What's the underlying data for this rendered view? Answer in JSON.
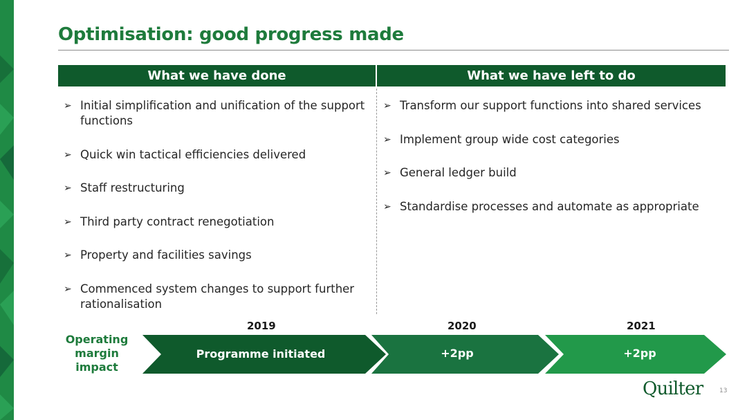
{
  "title": "Optimisation: good progress made",
  "colors": {
    "brand_green": "#1e7b3c",
    "header_green": "#0f5a2c"
  },
  "left_column": {
    "header": "What we have done",
    "items": [
      "Initial simplification and unification of the support functions",
      "Quick win tactical efficiencies delivered",
      "Staff restructuring",
      "Third party contract renegotiation",
      "Property and facilities savings",
      "Commenced system changes to support further rationalisation"
    ]
  },
  "right_column": {
    "header": "What we have left to do",
    "items": [
      "Transform our support functions into shared services",
      "Implement group wide cost categories",
      "General ledger build",
      "Standardise processes and automate as appropriate"
    ]
  },
  "timeline": {
    "label": "Operating margin impact",
    "steps": [
      {
        "year": "2019",
        "text": "Programme initiated",
        "color": "#0f5a2c"
      },
      {
        "year": "2020",
        "text": "+2pp",
        "color": "#1a7340"
      },
      {
        "year": "2021",
        "text": "+2pp",
        "color": "#22994a"
      }
    ]
  },
  "logo": "Quilter",
  "page_number": "13"
}
